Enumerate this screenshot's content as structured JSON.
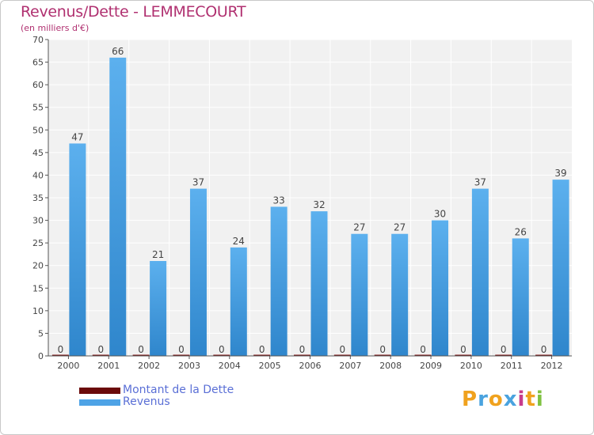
{
  "chart_data": {
    "type": "bar",
    "title": "Revenus/Dette - LEMMECOURT",
    "subtitle": "(en milliers d'€)",
    "categories": [
      "2000",
      "2001",
      "2002",
      "2003",
      "2004",
      "2005",
      "2006",
      "2007",
      "2008",
      "2009",
      "2010",
      "2011",
      "2012"
    ],
    "series": [
      {
        "name": "Montant de la Dette",
        "color": "#6b0a0a",
        "values": [
          0,
          0,
          0,
          0,
          0,
          0,
          0,
          0,
          0,
          0,
          0,
          0,
          0
        ]
      },
      {
        "name": "Revenus",
        "color": "#4ea3e6",
        "values": [
          47,
          66,
          21,
          37,
          24,
          33,
          32,
          27,
          27,
          30,
          37,
          26,
          39
        ]
      }
    ],
    "ylim": [
      0,
      70
    ],
    "yticks": [
      0,
      5,
      10,
      15,
      20,
      25,
      30,
      35,
      40,
      45,
      50,
      55,
      60,
      65,
      70
    ],
    "grid": true,
    "legend_position": "bottom-left"
  },
  "branding": {
    "letters": [
      "P",
      "r",
      "o",
      "x",
      "i",
      "t",
      "i"
    ],
    "colors": [
      "#f0a21e",
      "#4aa3df",
      "#f0a21e",
      "#4aa3df",
      "#c83c8c",
      "#f0a21e",
      "#7fc241"
    ]
  }
}
